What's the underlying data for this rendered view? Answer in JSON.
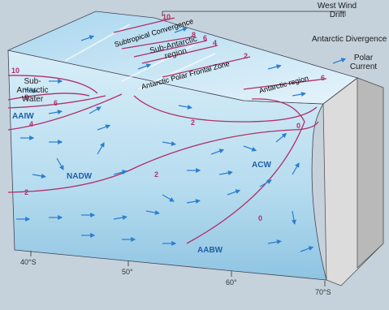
{
  "top_labels": {
    "subtropical_convergence": "Subtropical Convergence",
    "sub_antarctic_region": "Sub-Antarctic region",
    "antarctic_polar_frontal_zone": "Antarctic Polar Frontal Zone",
    "antarctic_region": "Antarctic region",
    "west_wind_drift": "West Wind Drift",
    "antarctic_divergence": "Antarctic Divergence",
    "polar_current": "Polar Current"
  },
  "water_masses": {
    "sub_antarctic_water": "Sub-Antarctic Water",
    "aaiw": "AAIW",
    "nadw": "NADW",
    "acw": "ACW",
    "aabw": "AABW"
  },
  "isotherm_labels": [
    "10",
    "8",
    "6",
    "4",
    "10",
    "8",
    "6",
    "4",
    "2",
    "2",
    "2",
    "2",
    "6",
    "0",
    "0"
  ],
  "latitudes": [
    "40°S",
    "50°",
    "60°",
    "70°S"
  ]
}
